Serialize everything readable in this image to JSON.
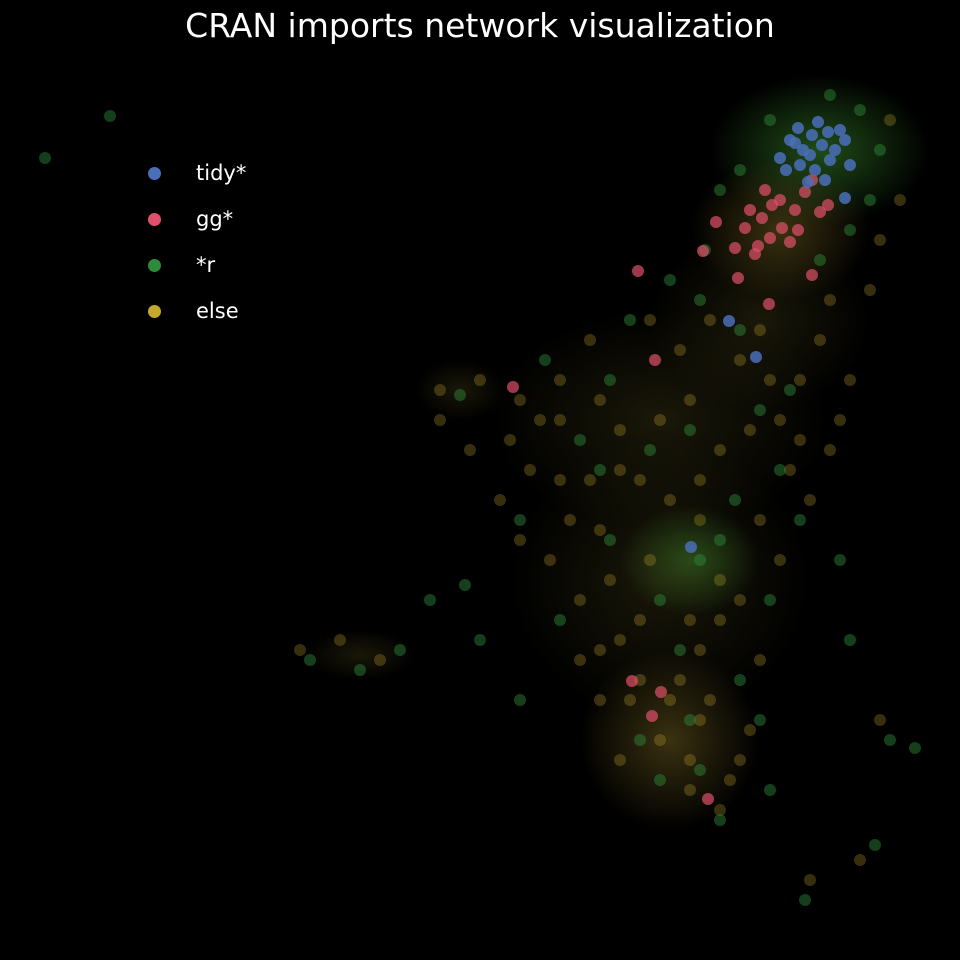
{
  "chart_data": {
    "type": "scatter",
    "title": "CRAN imports network visualization",
    "xlabel": "",
    "ylabel": "",
    "grid": false,
    "legend_position": "top-left",
    "series": [
      {
        "name": "tidy*",
        "color": "#4a6fb8",
        "points": [
          [
            790,
            140
          ],
          [
            803,
            150
          ],
          [
            812,
            135
          ],
          [
            822,
            145
          ],
          [
            830,
            160
          ],
          [
            800,
            165
          ],
          [
            815,
            170
          ],
          [
            835,
            150
          ],
          [
            845,
            140
          ],
          [
            780,
            158
          ],
          [
            825,
            180
          ],
          [
            808,
            182
          ],
          [
            850,
            165
          ],
          [
            818,
            122
          ],
          [
            798,
            128
          ],
          [
            840,
            130
          ],
          [
            786,
            170
          ],
          [
            828,
            132
          ],
          [
            810,
            155
          ],
          [
            795,
            143
          ],
          [
            845,
            198
          ],
          [
            729,
            321
          ],
          [
            756,
            357
          ],
          [
            691,
            547
          ]
        ]
      },
      {
        "name": "gg*",
        "color": "#e0506a",
        "points": [
          [
            750,
            210
          ],
          [
            762,
            218
          ],
          [
            772,
            205
          ],
          [
            782,
            228
          ],
          [
            795,
            210
          ],
          [
            805,
            192
          ],
          [
            790,
            242
          ],
          [
            770,
            238
          ],
          [
            745,
            228
          ],
          [
            735,
            248
          ],
          [
            758,
            246
          ],
          [
            780,
            200
          ],
          [
            798,
            230
          ],
          [
            765,
            190
          ],
          [
            812,
            180
          ],
          [
            820,
            212
          ],
          [
            716,
            222
          ],
          [
            703,
            251
          ],
          [
            738,
            278
          ],
          [
            755,
            254
          ],
          [
            638,
            271
          ],
          [
            769,
            304
          ],
          [
            812,
            275
          ],
          [
            828,
            205
          ],
          [
            655,
            360
          ],
          [
            513,
            387
          ],
          [
            632,
            681
          ],
          [
            661,
            692
          ],
          [
            652,
            716
          ],
          [
            708,
            799
          ]
        ]
      },
      {
        "name": "*r",
        "color": "#2e8b3a",
        "points": [
          [
            110,
            116
          ],
          [
            45,
            158
          ],
          [
            460,
            395
          ],
          [
            520,
            520
          ],
          [
            600,
            470
          ],
          [
            660,
            600
          ],
          [
            700,
            560
          ],
          [
            720,
            540
          ],
          [
            735,
            500
          ],
          [
            650,
            450
          ],
          [
            690,
            430
          ],
          [
            760,
            410
          ],
          [
            790,
            390
          ],
          [
            700,
            300
          ],
          [
            740,
            330
          ],
          [
            680,
            650
          ],
          [
            640,
            740
          ],
          [
            700,
            770
          ],
          [
            760,
            720
          ],
          [
            850,
            640
          ],
          [
            890,
            740
          ],
          [
            915,
            748
          ],
          [
            875,
            845
          ],
          [
            805,
            900
          ],
          [
            430,
            600
          ],
          [
            480,
            640
          ],
          [
            520,
            700
          ],
          [
            560,
            620
          ],
          [
            610,
            540
          ],
          [
            580,
            440
          ],
          [
            545,
            360
          ],
          [
            780,
            470
          ],
          [
            800,
            520
          ],
          [
            840,
            560
          ],
          [
            770,
            600
          ],
          [
            740,
            680
          ],
          [
            690,
            720
          ],
          [
            660,
            780
          ],
          [
            720,
            820
          ],
          [
            770,
            790
          ],
          [
            310,
            660
          ],
          [
            360,
            670
          ],
          [
            400,
            650
          ],
          [
            465,
            585
          ],
          [
            610,
            380
          ],
          [
            630,
            320
          ],
          [
            670,
            280
          ],
          [
            705,
            250
          ],
          [
            820,
            260
          ],
          [
            850,
            230
          ],
          [
            870,
            200
          ],
          [
            880,
            150
          ],
          [
            860,
            110
          ],
          [
            830,
            95
          ],
          [
            770,
            120
          ],
          [
            740,
            170
          ],
          [
            720,
            190
          ]
        ]
      },
      {
        "name": "else",
        "color": "#c4a72d",
        "points": [
          [
            440,
            390
          ],
          [
            480,
            380
          ],
          [
            520,
            400
          ],
          [
            560,
            420
          ],
          [
            600,
            400
          ],
          [
            620,
            430
          ],
          [
            640,
            480
          ],
          [
            670,
            500
          ],
          [
            700,
            480
          ],
          [
            720,
            450
          ],
          [
            750,
            430
          ],
          [
            780,
            420
          ],
          [
            800,
            380
          ],
          [
            820,
            340
          ],
          [
            760,
            330
          ],
          [
            710,
            320
          ],
          [
            680,
            350
          ],
          [
            650,
            320
          ],
          [
            590,
            340
          ],
          [
            560,
            380
          ],
          [
            530,
            470
          ],
          [
            570,
            520
          ],
          [
            610,
            580
          ],
          [
            640,
            620
          ],
          [
            600,
            650
          ],
          [
            630,
            700
          ],
          [
            660,
            740
          ],
          [
            690,
            790
          ],
          [
            720,
            810
          ],
          [
            740,
            760
          ],
          [
            710,
            700
          ],
          [
            700,
            650
          ],
          [
            740,
            600
          ],
          [
            780,
            560
          ],
          [
            810,
            500
          ],
          [
            830,
            450
          ],
          [
            790,
            470
          ],
          [
            760,
            520
          ],
          [
            720,
            580
          ],
          [
            690,
            620
          ],
          [
            680,
            680
          ],
          [
            620,
            760
          ],
          [
            600,
            700
          ],
          [
            580,
            600
          ],
          [
            550,
            560
          ],
          [
            520,
            540
          ],
          [
            500,
            500
          ],
          [
            470,
            450
          ],
          [
            440,
            420
          ],
          [
            380,
            660
          ],
          [
            340,
            640
          ],
          [
            300,
            650
          ],
          [
            880,
            720
          ],
          [
            860,
            860
          ],
          [
            810,
            880
          ],
          [
            850,
            380
          ],
          [
            880,
            240
          ],
          [
            900,
            200
          ],
          [
            890,
            120
          ],
          [
            870,
            290
          ],
          [
            830,
            300
          ],
          [
            840,
            420
          ],
          [
            800,
            440
          ],
          [
            770,
            380
          ],
          [
            740,
            360
          ],
          [
            690,
            400
          ],
          [
            660,
            420
          ],
          [
            620,
            470
          ],
          [
            590,
            480
          ],
          [
            700,
            520
          ],
          [
            720,
            620
          ],
          [
            760,
            660
          ],
          [
            650,
            560
          ],
          [
            600,
            530
          ],
          [
            560,
            480
          ],
          [
            540,
            420
          ],
          [
            510,
            440
          ],
          [
            700,
            720
          ],
          [
            670,
            700
          ],
          [
            640,
            680
          ],
          [
            690,
            760
          ],
          [
            730,
            780
          ],
          [
            750,
            730
          ],
          [
            620,
            640
          ],
          [
            580,
            660
          ]
        ]
      }
    ]
  }
}
